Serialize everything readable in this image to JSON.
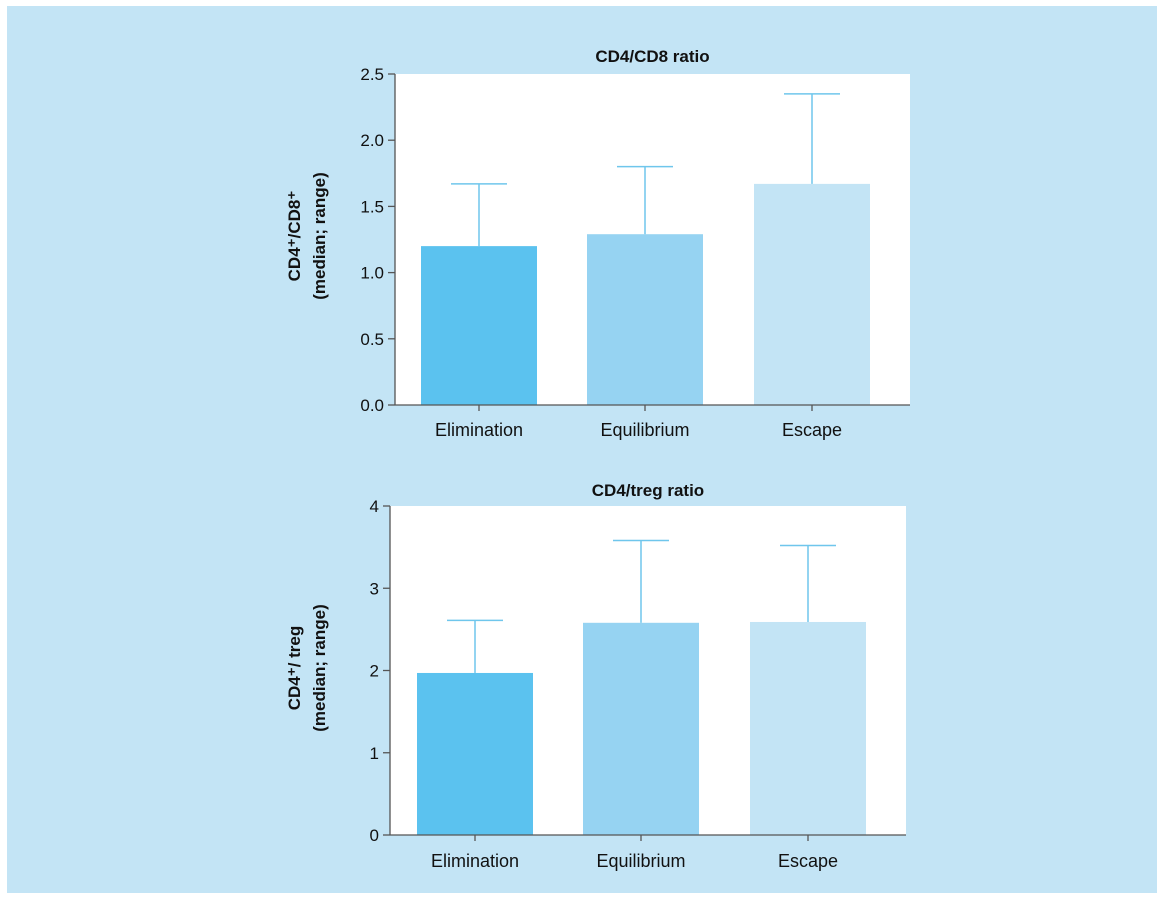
{
  "chart_data": [
    {
      "type": "bar",
      "title": "CD4/CD8 ratio",
      "ylabel_lines": [
        "CD4⁺/CD8⁺",
        "(median; range)"
      ],
      "xlabel": "",
      "categories": [
        "Elimination",
        "Equilibrium",
        "Escape"
      ],
      "values": [
        1.2,
        1.29,
        1.67
      ],
      "error_upper": [
        1.67,
        1.8,
        2.35
      ],
      "ylim": [
        0,
        2.5
      ],
      "yticks": [
        "0.0",
        "0.5",
        "1.0",
        "1.5",
        "2.0",
        "2.5"
      ],
      "colors": [
        "#5bc2ef",
        "#96d3f2",
        "#c3e4f5"
      ],
      "grid": false
    },
    {
      "type": "bar",
      "title": "CD4/treg ratio",
      "ylabel_lines": [
        "CD4⁺/ treg",
        "(median; range)"
      ],
      "xlabel": "",
      "categories": [
        "Elimination",
        "Equilibrium",
        "Escape"
      ],
      "values": [
        1.97,
        2.58,
        2.59
      ],
      "error_upper": [
        2.61,
        3.58,
        3.52
      ],
      "ylim": [
        0,
        4
      ],
      "yticks": [
        "0",
        "1",
        "2",
        "3",
        "4"
      ],
      "colors": [
        "#5bc2ef",
        "#96d3f2",
        "#c3e4f5"
      ],
      "grid": false
    }
  ],
  "style": {
    "axis_color": "#555555",
    "error_bar_color": "#6fc6ec",
    "plot_background": "#ffffff",
    "figure_background": "#c3e4f5"
  }
}
